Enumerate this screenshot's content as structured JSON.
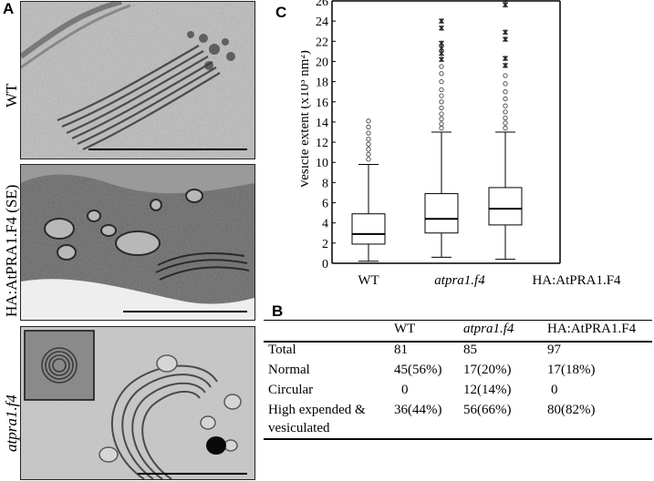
{
  "panels": {
    "a_label": "A",
    "b_label": "B",
    "c_label": "C"
  },
  "micrographs": [
    {
      "label": "WT",
      "italic": false
    },
    {
      "label": "HA:AtPRA1.F4 (SE)",
      "italic": false
    },
    {
      "label": "atpra1.f4",
      "italic": true
    }
  ],
  "chart_data": {
    "type": "box",
    "ylabel": "Vesicle extent (x10³ nm²)",
    "ylim": [
      0,
      26
    ],
    "yticks": [
      0,
      2,
      4,
      6,
      8,
      10,
      12,
      14,
      16,
      18,
      20,
      22,
      24,
      26
    ],
    "categories": [
      "WT",
      "atpra1.f4",
      "HA:AtPRA1.F4"
    ],
    "category_italic": [
      false,
      true,
      false
    ],
    "boxes": [
      {
        "whisker_low": 0.2,
        "q1": 1.9,
        "median": 2.9,
        "q3": 4.9,
        "whisker_high": 9.8,
        "outliers_circle": [
          10.3,
          10.8,
          11.3,
          11.8,
          12.3,
          12.9,
          13.5,
          14.1
        ],
        "outliers_star": []
      },
      {
        "whisker_low": 0.6,
        "q1": 3.0,
        "median": 4.4,
        "q3": 6.9,
        "whisker_high": 13.0,
        "outliers_circle": [
          13.4,
          13.8,
          14.3,
          14.8,
          15.4,
          16.0,
          16.6,
          17.2,
          18.0,
          18.8,
          19.5
        ],
        "outliers_star": [
          20.2,
          20.8,
          21.3,
          21.8,
          23.3,
          24.0
        ]
      },
      {
        "whisker_low": 0.4,
        "q1": 3.8,
        "median": 5.4,
        "q3": 7.5,
        "whisker_high": 13.0,
        "outliers_circle": [
          13.4,
          13.9,
          14.4,
          15.0,
          15.6,
          16.3,
          17.0,
          17.8,
          18.6
        ],
        "outliers_star": [
          19.6,
          20.3,
          22.2,
          22.9,
          25.6,
          26.1
        ]
      }
    ]
  },
  "table": {
    "headers": [
      {
        "text": "WT",
        "italic": false
      },
      {
        "text": "atpra1.f4",
        "italic": true
      },
      {
        "text": "HA:AtPRA1.F4",
        "italic": false
      }
    ],
    "rows": [
      {
        "label": "Total",
        "values": [
          "81",
          "85",
          "97"
        ]
      },
      {
        "label": "Normal",
        "values": [
          "45(56%)",
          "17(20%)",
          "17(18%)"
        ]
      },
      {
        "label": "Circular",
        "values": [
          "0",
          "12(14%)",
          "0"
        ]
      },
      {
        "label": "High expended &",
        "values": [
          "36(44%)",
          "56(66%)",
          "80(82%)"
        ]
      },
      {
        "label": "vesiculated",
        "values": [
          "",
          "",
          ""
        ]
      }
    ]
  }
}
